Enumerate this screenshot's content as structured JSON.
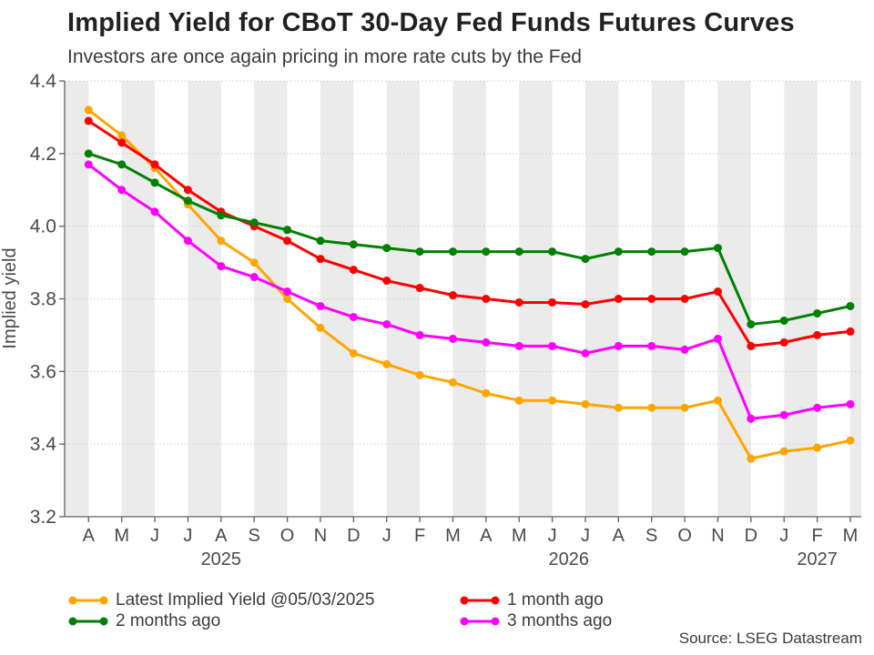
{
  "header": {
    "title": "Implied Yield for CBoT 30-Day Fed Funds Futures Curves",
    "subtitle": "Investors are once again pricing in more rate cuts by the Fed"
  },
  "source_label": "Source: LSEG Datastream",
  "chart_data": {
    "type": "line",
    "title": "Implied Yield for CBoT 30-Day Fed Funds Futures Curves",
    "subtitle": "Investors are once again pricing in more rate cuts by the Fed",
    "xlabel": "",
    "ylabel": "Implied yield",
    "ylim": [
      3.2,
      4.4
    ],
    "yticks": [
      4.4,
      4.2,
      4.0,
      3.8,
      3.6,
      3.4,
      3.2
    ],
    "grid": "horizontal dotted gridlines, alternating monthly gray background stripes",
    "legend_position": "bottom",
    "x_month_labels": [
      "A",
      "M",
      "J",
      "J",
      "A",
      "S",
      "O",
      "N",
      "D",
      "J",
      "F",
      "M",
      "A",
      "M",
      "J",
      "J",
      "A",
      "S",
      "O",
      "N",
      "D",
      "J",
      "F",
      "M"
    ],
    "x_range_note": "Apr 2025 through Mar 2027, monthly",
    "year_labels": [
      {
        "label": "2025",
        "from": 0,
        "to": 8
      },
      {
        "label": "2026",
        "from": 9,
        "to": 20
      },
      {
        "label": "2027",
        "from": 21,
        "to": 23
      }
    ],
    "series": [
      {
        "name": "Latest Implied Yield @05/03/2025",
        "color": "#FFA500",
        "values": [
          4.32,
          4.25,
          4.16,
          4.06,
          3.96,
          3.9,
          3.8,
          3.72,
          3.65,
          3.62,
          3.59,
          3.57,
          3.54,
          3.52,
          3.52,
          3.51,
          3.5,
          3.5,
          3.5,
          3.52,
          3.36,
          3.38,
          3.39,
          3.41
        ]
      },
      {
        "name": "1 month ago",
        "color": "#FF0000",
        "values": [
          4.29,
          4.23,
          4.17,
          4.1,
          4.04,
          4.0,
          3.96,
          3.91,
          3.88,
          3.85,
          3.83,
          3.81,
          3.8,
          3.79,
          3.79,
          3.785,
          3.8,
          3.8,
          3.8,
          3.82,
          3.67,
          3.68,
          3.7,
          3.71
        ]
      },
      {
        "name": "2 months ago",
        "color": "#008000",
        "values": [
          4.2,
          4.17,
          4.12,
          4.07,
          4.03,
          4.01,
          3.99,
          3.96,
          3.95,
          3.94,
          3.93,
          3.93,
          3.93,
          3.93,
          3.93,
          3.91,
          3.93,
          3.93,
          3.93,
          3.94,
          3.73,
          3.74,
          3.76,
          3.78
        ]
      },
      {
        "name": "3 months ago",
        "color": "#FF00FF",
        "values": [
          4.17,
          4.1,
          4.04,
          3.96,
          3.89,
          3.86,
          3.82,
          3.78,
          3.75,
          3.73,
          3.7,
          3.69,
          3.68,
          3.67,
          3.67,
          3.65,
          3.67,
          3.67,
          3.66,
          3.69,
          3.47,
          3.48,
          3.5,
          3.51
        ]
      }
    ],
    "style": {
      "stripe_color": "#ebebeb",
      "grid_color": "#cccccc",
      "spine_color": "#606060",
      "line_width": 3,
      "marker_radius": 4.5
    }
  }
}
